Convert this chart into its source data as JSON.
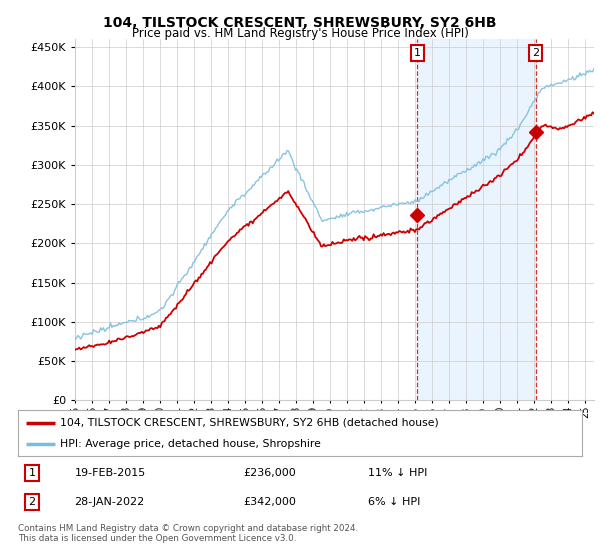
{
  "title": "104, TILSTOCK CRESCENT, SHREWSBURY, SY2 6HB",
  "subtitle": "Price paid vs. HM Land Registry's House Price Index (HPI)",
  "legend_line1": "104, TILSTOCK CRESCENT, SHREWSBURY, SY2 6HB (detached house)",
  "legend_line2": "HPI: Average price, detached house, Shropshire",
  "annotation1_label": "1",
  "annotation1_date": "19-FEB-2015",
  "annotation1_price": "£236,000",
  "annotation1_hpi": "11% ↓ HPI",
  "annotation1_year": 2015.12,
  "annotation1_value": 236000,
  "annotation2_label": "2",
  "annotation2_date": "28-JAN-2022",
  "annotation2_price": "£342,000",
  "annotation2_hpi": "6% ↓ HPI",
  "annotation2_year": 2022.07,
  "annotation2_value": 342000,
  "footer": "Contains HM Land Registry data © Crown copyright and database right 2024.\nThis data is licensed under the Open Government Licence v3.0.",
  "hpi_color": "#7bbde0",
  "price_color": "#cc0000",
  "marker_color": "#cc0000",
  "shade_color": "#ddeeff",
  "background_color": "#ffffff",
  "grid_color": "#cccccc",
  "ylim": [
    0,
    460000
  ],
  "yticks": [
    0,
    50000,
    100000,
    150000,
    200000,
    250000,
    300000,
    350000,
    400000,
    450000
  ],
  "xlim_start": 1995,
  "xlim_end": 2025.5
}
